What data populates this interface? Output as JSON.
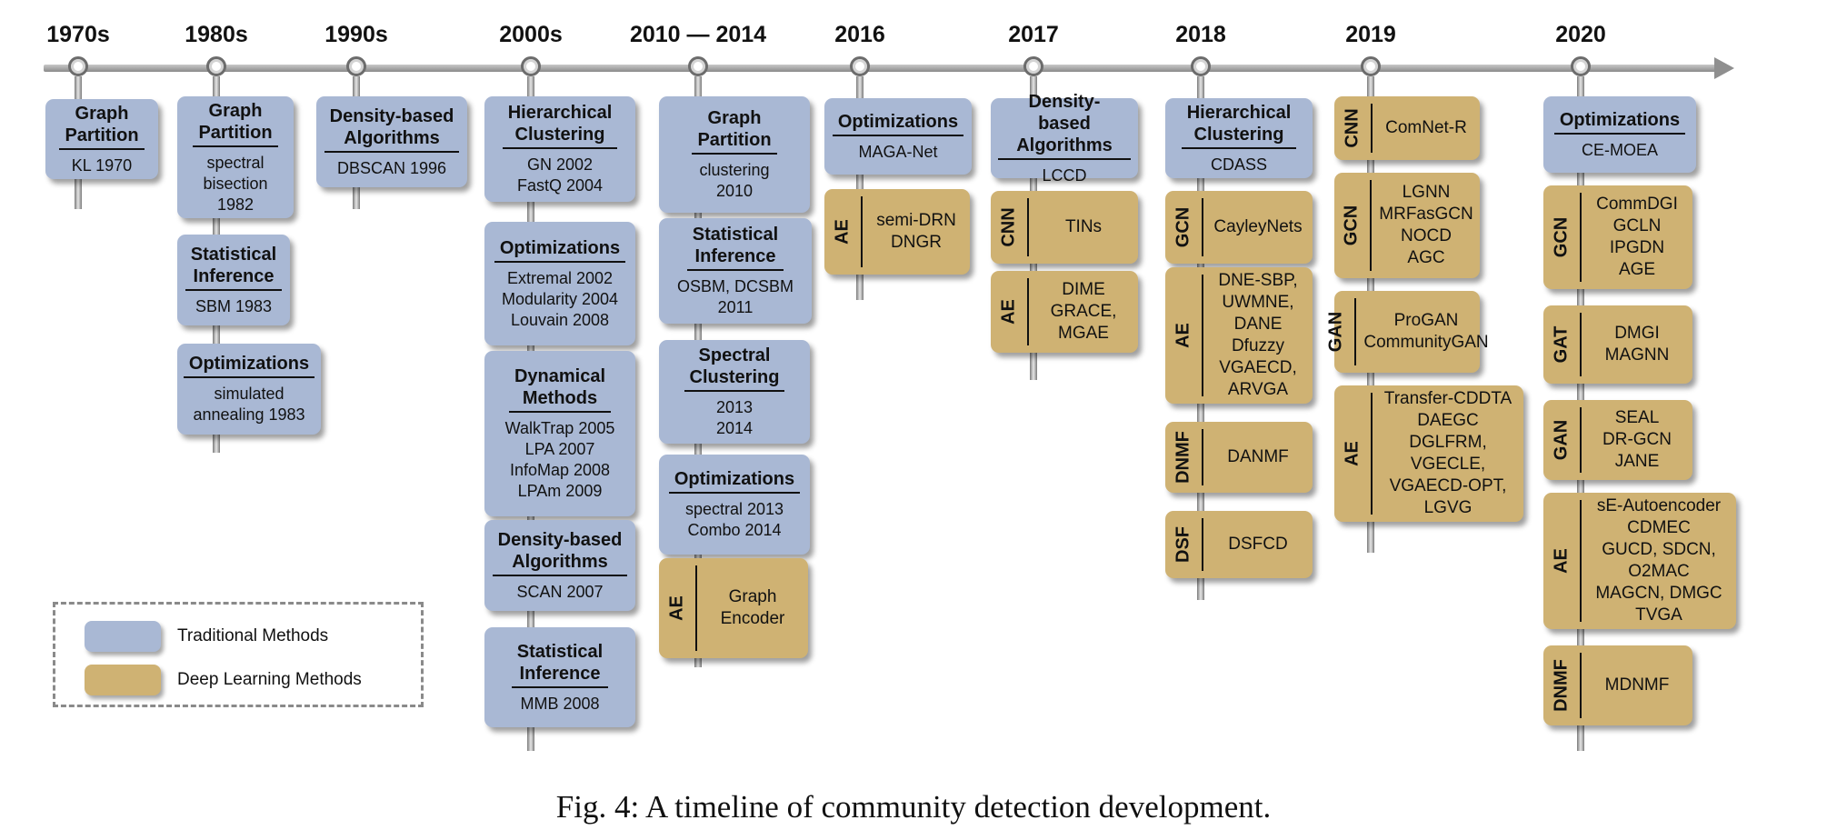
{
  "legend": {
    "traditional": "Traditional Methods",
    "deep": "Deep Learning Methods",
    "colors": {
      "traditional": "#a9b8d4",
      "deep": "#cfb273"
    }
  },
  "caption": "Fig. 4: A timeline of community detection development.",
  "eras": [
    {
      "label": "1970s",
      "blocks": [
        {
          "kind": "traditional",
          "title": [
            "Graph",
            "Partition"
          ],
          "items": [
            "KL 1970"
          ]
        }
      ]
    },
    {
      "label": "1980s",
      "blocks": [
        {
          "kind": "traditional",
          "title": [
            "Graph",
            "Partition"
          ],
          "items": [
            "spectral",
            "bisection",
            "1982"
          ]
        },
        {
          "kind": "traditional",
          "title": [
            "Statistical",
            "Inference"
          ],
          "items": [
            "SBM 1983"
          ]
        },
        {
          "kind": "traditional",
          "title": [
            "Optimizations"
          ],
          "items": [
            "simulated",
            "annealing 1983"
          ]
        }
      ]
    },
    {
      "label": "1990s",
      "blocks": [
        {
          "kind": "traditional",
          "title": [
            "Density-based",
            "Algorithms"
          ],
          "items": [
            "DBSCAN 1996"
          ]
        }
      ]
    },
    {
      "label": "2000s",
      "blocks": [
        {
          "kind": "traditional",
          "title": [
            "Hierarchical",
            "Clustering"
          ],
          "items": [
            "GN 2002",
            "FastQ 2004"
          ]
        },
        {
          "kind": "traditional",
          "title": [
            "Optimizations"
          ],
          "items": [
            "Extremal 2002",
            "Modularity 2004",
            "Louvain 2008"
          ]
        },
        {
          "kind": "traditional",
          "title": [
            "Dynamical",
            "Methods"
          ],
          "items": [
            "WalkTrap 2005",
            "LPA 2007",
            "InfoMap 2008",
            "LPAm 2009"
          ]
        },
        {
          "kind": "traditional",
          "title": [
            "Density-based",
            "Algorithms"
          ],
          "items": [
            "SCAN 2007"
          ]
        },
        {
          "kind": "traditional",
          "title": [
            "Statistical",
            "Inference"
          ],
          "items": [
            "MMB 2008"
          ]
        }
      ]
    },
    {
      "label": "2010 — 2014",
      "blocks": [
        {
          "kind": "traditional",
          "title": [
            "Graph",
            "Partition"
          ],
          "items": [
            "clustering",
            "2010"
          ]
        },
        {
          "kind": "traditional",
          "title": [
            "Statistical",
            "Inference"
          ],
          "items": [
            "OSBM, DCSBM",
            "2011"
          ]
        },
        {
          "kind": "traditional",
          "title": [
            "Spectral",
            "Clustering"
          ],
          "items": [
            "2013",
            "2014"
          ]
        },
        {
          "kind": "traditional",
          "title": [
            "Optimizations"
          ],
          "items": [
            "spectral 2013",
            "Combo 2014"
          ]
        },
        {
          "kind": "deep",
          "tag": "AE",
          "items": [
            "Graph",
            "Encoder"
          ]
        }
      ]
    },
    {
      "label": "2016",
      "blocks": [
        {
          "kind": "traditional",
          "title": [
            "Optimizations"
          ],
          "items": [
            "MAGA-Net"
          ]
        },
        {
          "kind": "deep",
          "tag": "AE",
          "items": [
            "semi-DRN",
            "DNGR"
          ]
        }
      ]
    },
    {
      "label": "2017",
      "blocks": [
        {
          "kind": "traditional",
          "title": [
            "Density-based",
            "Algorithms"
          ],
          "items": [
            "LCCD"
          ]
        },
        {
          "kind": "deep",
          "tag": "CNN",
          "items": [
            "TINs"
          ]
        },
        {
          "kind": "deep",
          "tag": "AE",
          "items": [
            "DIME",
            "GRACE,",
            "MGAE"
          ]
        }
      ]
    },
    {
      "label": "2018",
      "blocks": [
        {
          "kind": "traditional",
          "title": [
            "Hierarchical",
            "Clustering"
          ],
          "items": [
            "CDASS"
          ]
        },
        {
          "kind": "deep",
          "tag": "GCN",
          "items": [
            "CayleyNets"
          ]
        },
        {
          "kind": "deep",
          "tag": "AE",
          "items": [
            "DNE-SBP,",
            "UWMNE,",
            "DANE",
            "Dfuzzy",
            "VGAECD,",
            "ARVGA"
          ]
        },
        {
          "kind": "deep",
          "tag": "DNMF",
          "items": [
            "DANMF"
          ]
        },
        {
          "kind": "deep",
          "tag": "DSF",
          "items": [
            "DSFCD"
          ]
        }
      ]
    },
    {
      "label": "2019",
      "blocks": [
        {
          "kind": "deep",
          "tag": "CNN",
          "items": [
            "ComNet-R"
          ]
        },
        {
          "kind": "deep",
          "tag": "GCN",
          "items": [
            "LGNN",
            "MRFasGCN",
            "NOCD",
            "AGC"
          ]
        },
        {
          "kind": "deep",
          "tag": "GAN",
          "items": [
            "ProGAN",
            "CommunityGAN"
          ]
        },
        {
          "kind": "deep",
          "tag": "AE",
          "items": [
            "Transfer-CDDTA",
            "DAEGC",
            "DGLFRM,",
            "VGECLE,",
            "VGAECD-OPT,",
            "LGVG"
          ]
        }
      ]
    },
    {
      "label": "2020",
      "blocks": [
        {
          "kind": "traditional",
          "title": [
            "Optimizations"
          ],
          "items": [
            "CE-MOEA"
          ]
        },
        {
          "kind": "deep",
          "tag": "GCN",
          "items": [
            "CommDGI",
            "GCLN",
            "IPGDN",
            "AGE"
          ]
        },
        {
          "kind": "deep",
          "tag": "GAT",
          "items": [
            "DMGI",
            "MAGNN"
          ]
        },
        {
          "kind": "deep",
          "tag": "GAN",
          "items": [
            "SEAL",
            "DR-GCN",
            "JANE"
          ]
        },
        {
          "kind": "deep",
          "tag": "AE",
          "items": [
            "sE-Autoencoder",
            "CDMEC",
            "GUCD, SDCN,",
            "O2MAC",
            "MAGCN, DMGC",
            "TVGA"
          ]
        },
        {
          "kind": "deep",
          "tag": "DNMF",
          "items": [
            "MDNMF"
          ]
        }
      ]
    }
  ]
}
